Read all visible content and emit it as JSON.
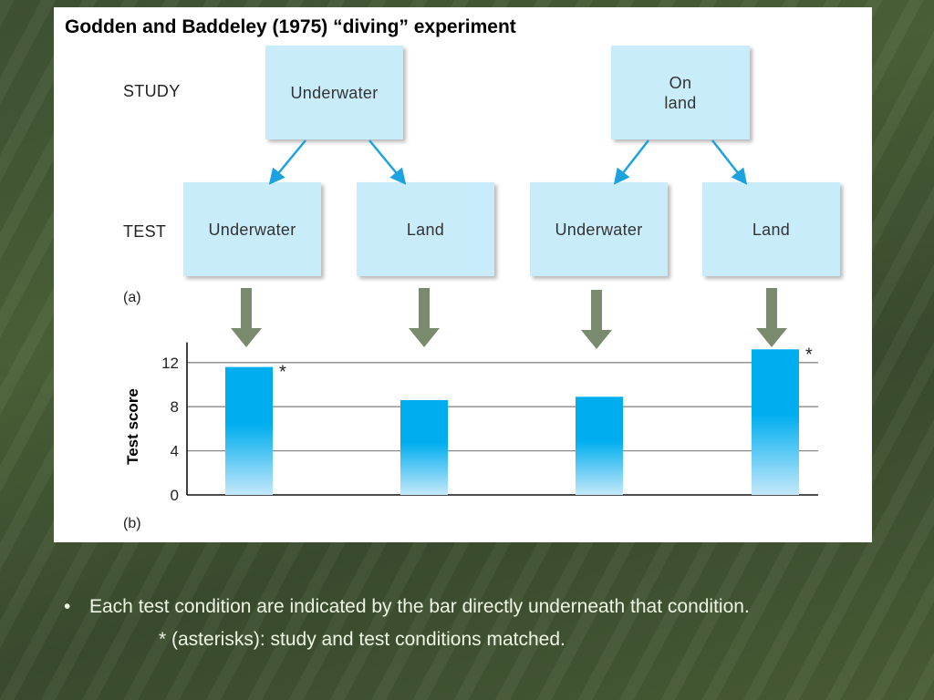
{
  "colors": {
    "slide_background": "#445a35",
    "box_fill": "#c9ecfb",
    "flow_arrow": "#1aa3e0",
    "down_arrow": "#7a8a6c",
    "bar_top": "#00aeef",
    "bar_bottom": "#bfe6f9",
    "bullet_text": "#eef5e4"
  },
  "diagram": {
    "title": "Godden and Baddeley (1975) “diving” experiment",
    "study_label": "STUDY",
    "test_label": "TEST",
    "part_a_label": "(a)",
    "part_b_label": "(b)",
    "study_boxes": [
      {
        "label": "Underwater"
      },
      {
        "label": "On\nland"
      }
    ],
    "test_boxes": [
      {
        "label": "Underwater"
      },
      {
        "label": "Land"
      },
      {
        "label": "Underwater"
      },
      {
        "label": "Land"
      }
    ],
    "connections": [
      {
        "from": "study-underwater",
        "to": "test-underwater-1"
      },
      {
        "from": "study-underwater",
        "to": "test-land-1"
      },
      {
        "from": "study-on-land",
        "to": "test-underwater-2"
      },
      {
        "from": "study-on-land",
        "to": "test-land-2"
      }
    ],
    "down_arrows": 4,
    "icons": [
      "arrow-icon",
      "down-arrow-icon"
    ]
  },
  "chart_data": {
    "type": "bar",
    "categories": [
      "Underwater",
      "Land",
      "Underwater",
      "Land"
    ],
    "values": [
      11.6,
      8.6,
      8.9,
      13.2
    ],
    "annotations": [
      "*",
      "",
      "",
      "*"
    ],
    "ylabel": "Test score",
    "ylim": [
      0,
      13.5
    ],
    "yticks": [
      0,
      4,
      8,
      12
    ],
    "grid": true
  },
  "bullets": [
    {
      "bullet": "•",
      "text": "Each test condition are indicated by the bar directly underneath that condition.",
      "continuation": "* (asterisks): study and test conditions matched."
    }
  ]
}
